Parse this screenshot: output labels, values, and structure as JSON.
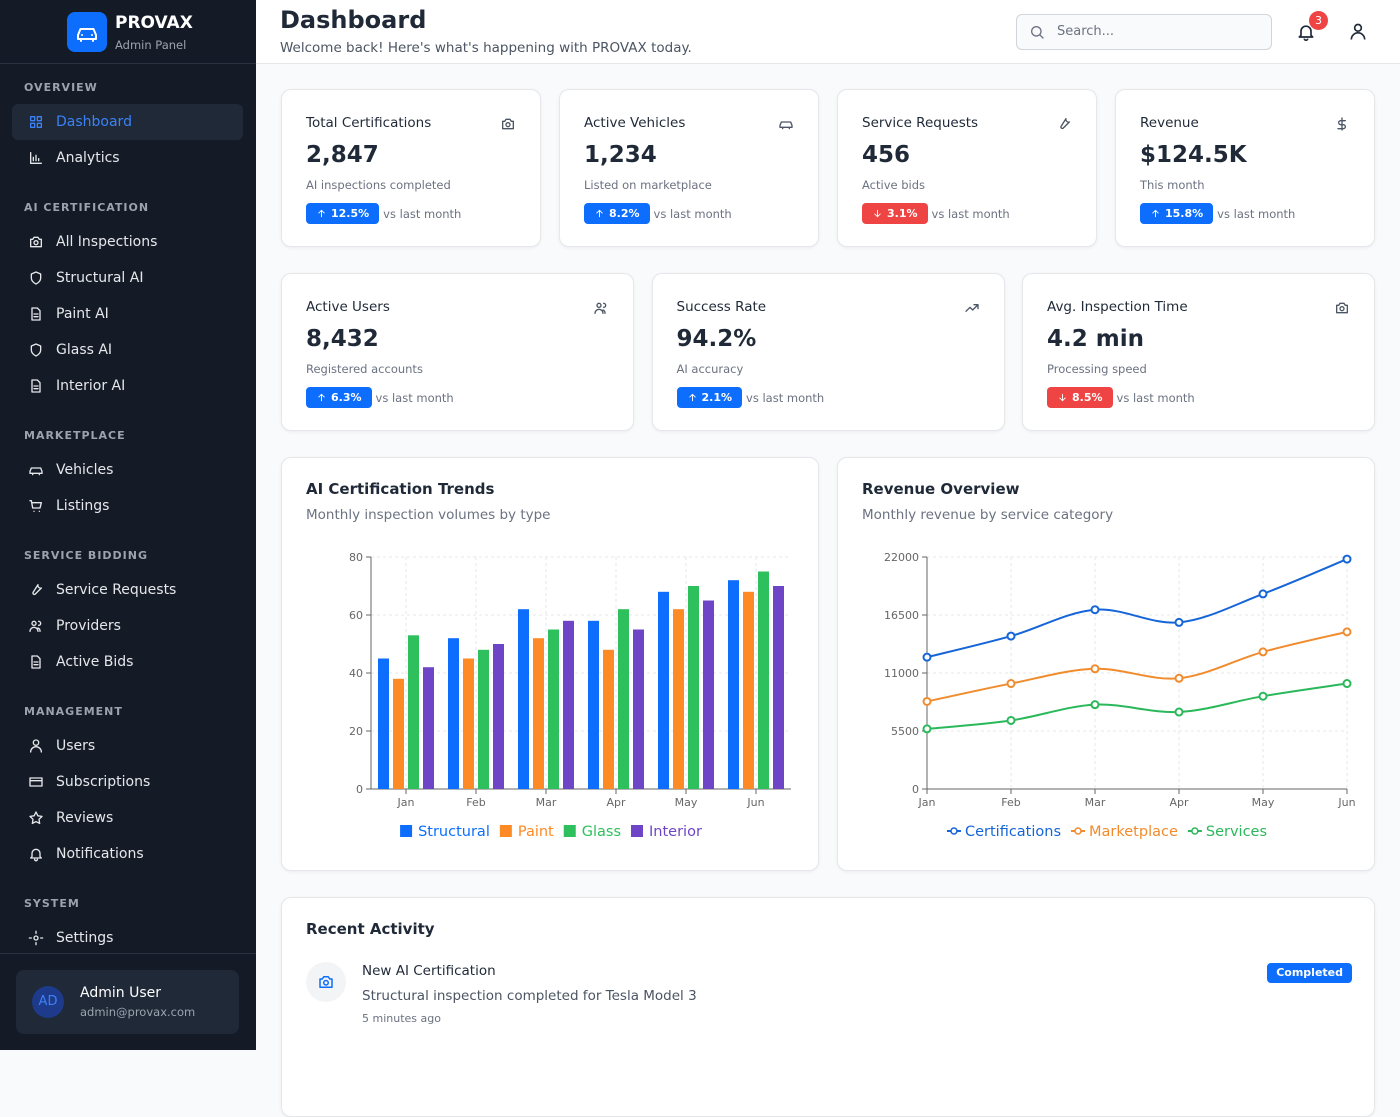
{
  "sidebar": {
    "brand": "PROVAX",
    "subtitle": "Admin Panel",
    "sections": [
      {
        "title": "OVERVIEW",
        "items": [
          {
            "label": "Dashboard",
            "active": true
          },
          {
            "label": "Analytics"
          }
        ]
      },
      {
        "title": "AI CERTIFICATION",
        "items": [
          {
            "label": "All Inspections"
          },
          {
            "label": "Structural AI"
          },
          {
            "label": "Paint AI"
          },
          {
            "label": "Glass AI"
          },
          {
            "label": "Interior AI"
          }
        ]
      },
      {
        "title": "MARKETPLACE",
        "items": [
          {
            "label": "Vehicles"
          },
          {
            "label": "Listings"
          }
        ]
      },
      {
        "title": "SERVICE BIDDING",
        "items": [
          {
            "label": "Service Requests"
          },
          {
            "label": "Providers"
          },
          {
            "label": "Active Bids"
          }
        ]
      },
      {
        "title": "MANAGEMENT",
        "items": [
          {
            "label": "Users"
          },
          {
            "label": "Subscriptions"
          },
          {
            "label": "Reviews"
          },
          {
            "label": "Notifications"
          }
        ]
      },
      {
        "title": "SYSTEM",
        "items": [
          {
            "label": "Settings"
          }
        ]
      }
    ],
    "user": {
      "initials": "AD",
      "name": "Admin User",
      "email": "admin@provax.com"
    }
  },
  "header": {
    "title": "Dashboard",
    "subtitle": "Welcome back! Here's what's happening with PROVAX today.",
    "search_placeholder": "Search...",
    "notifications": "3"
  },
  "stats": [
    {
      "label": "Total Certifications",
      "value": "2,847",
      "note": "AI inspections completed",
      "change": "12.5%",
      "trend": "up",
      "comparison": "vs last month"
    },
    {
      "label": "Active Vehicles",
      "value": "1,234",
      "note": "Listed on marketplace",
      "change": "8.2%",
      "trend": "up",
      "comparison": "vs last month"
    },
    {
      "label": "Service Requests",
      "value": "456",
      "note": "Active bids",
      "change": "3.1%",
      "trend": "down",
      "comparison": "vs last month"
    },
    {
      "label": "Revenue",
      "value": "$124.5K",
      "note": "This month",
      "change": "15.8%",
      "trend": "up",
      "comparison": "vs last month"
    },
    {
      "label": "Active Users",
      "value": "8,432",
      "note": "Registered accounts",
      "change": "6.3%",
      "trend": "up",
      "comparison": "vs last month"
    },
    {
      "label": "Success Rate",
      "value": "94.2%",
      "note": "AI accuracy",
      "change": "2.1%",
      "trend": "up",
      "comparison": "vs last month"
    },
    {
      "label": "Avg. Inspection Time",
      "value": "4.2 min",
      "note": "Processing speed",
      "change": "8.5%",
      "trend": "down",
      "comparison": "vs last month"
    }
  ],
  "chart_data": [
    {
      "type": "bar",
      "title": "AI Certification Trends",
      "subtitle": "Monthly inspection volumes by type",
      "categories": [
        "Jan",
        "Feb",
        "Mar",
        "Apr",
        "May",
        "Jun"
      ],
      "series": [
        {
          "name": "Structural",
          "color": "#0d6efd",
          "values": [
            45,
            52,
            62,
            58,
            68,
            72
          ]
        },
        {
          "name": "Paint",
          "color": "#fd8a24",
          "values": [
            38,
            45,
            52,
            48,
            62,
            68
          ]
        },
        {
          "name": "Glass",
          "color": "#2ec05c",
          "values": [
            53,
            48,
            55,
            62,
            70,
            75
          ]
        },
        {
          "name": "Interior",
          "color": "#6f45c8",
          "values": [
            42,
            50,
            58,
            55,
            65,
            70
          ]
        }
      ],
      "ylim": [
        0,
        80
      ],
      "yticks": [
        0,
        20,
        40,
        60,
        80
      ],
      "grid": true,
      "legend": "bottom"
    },
    {
      "type": "line",
      "title": "Revenue Overview",
      "subtitle": "Monthly revenue by service category",
      "categories": [
        "Jan",
        "Feb",
        "Mar",
        "Apr",
        "May",
        "Jun"
      ],
      "series": [
        {
          "name": "Certifications",
          "color": "#1565d8",
          "values": [
            12500,
            14500,
            17000,
            15800,
            18500,
            21800
          ]
        },
        {
          "name": "Marketplace",
          "color": "#f08c2e",
          "values": [
            8300,
            10000,
            11400,
            10500,
            13000,
            14900
          ]
        },
        {
          "name": "Services",
          "color": "#2ab85a",
          "values": [
            5700,
            6500,
            8000,
            7300,
            8800,
            10000
          ]
        }
      ],
      "ylim": [
        0,
        22000
      ],
      "yticks": [
        0,
        5500,
        11000,
        16500,
        22000
      ],
      "grid": true,
      "legend": "bottom"
    }
  ],
  "activity": {
    "title": "Recent Activity",
    "items": [
      {
        "title": "New AI Certification",
        "description": "Structural inspection completed for Tesla Model 3",
        "time": "5 minutes ago",
        "status": "Completed"
      }
    ]
  }
}
